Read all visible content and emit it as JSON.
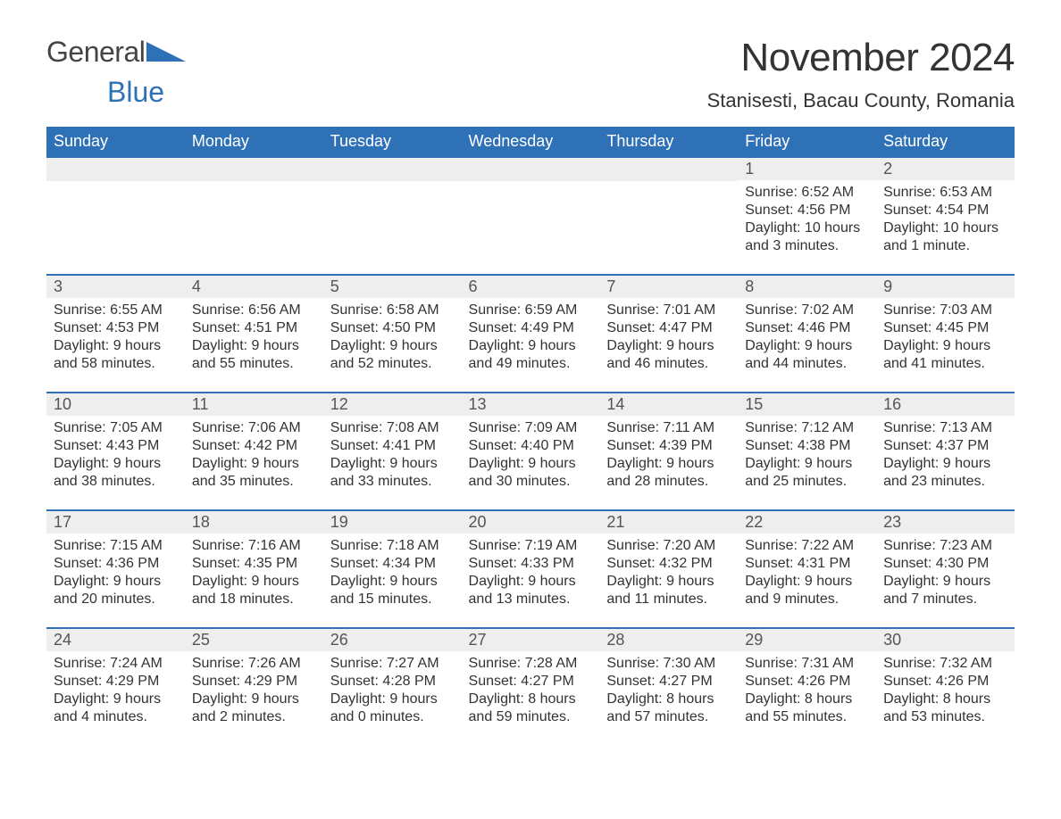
{
  "logo": {
    "word1": "General",
    "word2": "Blue"
  },
  "title": "November 2024",
  "location": "Stanisesti, Bacau County, Romania",
  "colors": {
    "header_bg": "#2f71b7",
    "header_fg": "#ffffff",
    "row_border": "#2f71b7",
    "daynum_bg": "#eeeeee",
    "text": "#333333"
  },
  "weekdays": [
    "Sunday",
    "Monday",
    "Tuesday",
    "Wednesday",
    "Thursday",
    "Friday",
    "Saturday"
  ],
  "weeks": [
    [
      null,
      null,
      null,
      null,
      null,
      {
        "n": "1",
        "sr": "Sunrise: 6:52 AM",
        "ss": "Sunset: 4:56 PM",
        "d1": "Daylight: 10 hours",
        "d2": "and 3 minutes."
      },
      {
        "n": "2",
        "sr": "Sunrise: 6:53 AM",
        "ss": "Sunset: 4:54 PM",
        "d1": "Daylight: 10 hours",
        "d2": "and 1 minute."
      }
    ],
    [
      {
        "n": "3",
        "sr": "Sunrise: 6:55 AM",
        "ss": "Sunset: 4:53 PM",
        "d1": "Daylight: 9 hours",
        "d2": "and 58 minutes."
      },
      {
        "n": "4",
        "sr": "Sunrise: 6:56 AM",
        "ss": "Sunset: 4:51 PM",
        "d1": "Daylight: 9 hours",
        "d2": "and 55 minutes."
      },
      {
        "n": "5",
        "sr": "Sunrise: 6:58 AM",
        "ss": "Sunset: 4:50 PM",
        "d1": "Daylight: 9 hours",
        "d2": "and 52 minutes."
      },
      {
        "n": "6",
        "sr": "Sunrise: 6:59 AM",
        "ss": "Sunset: 4:49 PM",
        "d1": "Daylight: 9 hours",
        "d2": "and 49 minutes."
      },
      {
        "n": "7",
        "sr": "Sunrise: 7:01 AM",
        "ss": "Sunset: 4:47 PM",
        "d1": "Daylight: 9 hours",
        "d2": "and 46 minutes."
      },
      {
        "n": "8",
        "sr": "Sunrise: 7:02 AM",
        "ss": "Sunset: 4:46 PM",
        "d1": "Daylight: 9 hours",
        "d2": "and 44 minutes."
      },
      {
        "n": "9",
        "sr": "Sunrise: 7:03 AM",
        "ss": "Sunset: 4:45 PM",
        "d1": "Daylight: 9 hours",
        "d2": "and 41 minutes."
      }
    ],
    [
      {
        "n": "10",
        "sr": "Sunrise: 7:05 AM",
        "ss": "Sunset: 4:43 PM",
        "d1": "Daylight: 9 hours",
        "d2": "and 38 minutes."
      },
      {
        "n": "11",
        "sr": "Sunrise: 7:06 AM",
        "ss": "Sunset: 4:42 PM",
        "d1": "Daylight: 9 hours",
        "d2": "and 35 minutes."
      },
      {
        "n": "12",
        "sr": "Sunrise: 7:08 AM",
        "ss": "Sunset: 4:41 PM",
        "d1": "Daylight: 9 hours",
        "d2": "and 33 minutes."
      },
      {
        "n": "13",
        "sr": "Sunrise: 7:09 AM",
        "ss": "Sunset: 4:40 PM",
        "d1": "Daylight: 9 hours",
        "d2": "and 30 minutes."
      },
      {
        "n": "14",
        "sr": "Sunrise: 7:11 AM",
        "ss": "Sunset: 4:39 PM",
        "d1": "Daylight: 9 hours",
        "d2": "and 28 minutes."
      },
      {
        "n": "15",
        "sr": "Sunrise: 7:12 AM",
        "ss": "Sunset: 4:38 PM",
        "d1": "Daylight: 9 hours",
        "d2": "and 25 minutes."
      },
      {
        "n": "16",
        "sr": "Sunrise: 7:13 AM",
        "ss": "Sunset: 4:37 PM",
        "d1": "Daylight: 9 hours",
        "d2": "and 23 minutes."
      }
    ],
    [
      {
        "n": "17",
        "sr": "Sunrise: 7:15 AM",
        "ss": "Sunset: 4:36 PM",
        "d1": "Daylight: 9 hours",
        "d2": "and 20 minutes."
      },
      {
        "n": "18",
        "sr": "Sunrise: 7:16 AM",
        "ss": "Sunset: 4:35 PM",
        "d1": "Daylight: 9 hours",
        "d2": "and 18 minutes."
      },
      {
        "n": "19",
        "sr": "Sunrise: 7:18 AM",
        "ss": "Sunset: 4:34 PM",
        "d1": "Daylight: 9 hours",
        "d2": "and 15 minutes."
      },
      {
        "n": "20",
        "sr": "Sunrise: 7:19 AM",
        "ss": "Sunset: 4:33 PM",
        "d1": "Daylight: 9 hours",
        "d2": "and 13 minutes."
      },
      {
        "n": "21",
        "sr": "Sunrise: 7:20 AM",
        "ss": "Sunset: 4:32 PM",
        "d1": "Daylight: 9 hours",
        "d2": "and 11 minutes."
      },
      {
        "n": "22",
        "sr": "Sunrise: 7:22 AM",
        "ss": "Sunset: 4:31 PM",
        "d1": "Daylight: 9 hours",
        "d2": "and 9 minutes."
      },
      {
        "n": "23",
        "sr": "Sunrise: 7:23 AM",
        "ss": "Sunset: 4:30 PM",
        "d1": "Daylight: 9 hours",
        "d2": "and 7 minutes."
      }
    ],
    [
      {
        "n": "24",
        "sr": "Sunrise: 7:24 AM",
        "ss": "Sunset: 4:29 PM",
        "d1": "Daylight: 9 hours",
        "d2": "and 4 minutes."
      },
      {
        "n": "25",
        "sr": "Sunrise: 7:26 AM",
        "ss": "Sunset: 4:29 PM",
        "d1": "Daylight: 9 hours",
        "d2": "and 2 minutes."
      },
      {
        "n": "26",
        "sr": "Sunrise: 7:27 AM",
        "ss": "Sunset: 4:28 PM",
        "d1": "Daylight: 9 hours",
        "d2": "and 0 minutes."
      },
      {
        "n": "27",
        "sr": "Sunrise: 7:28 AM",
        "ss": "Sunset: 4:27 PM",
        "d1": "Daylight: 8 hours",
        "d2": "and 59 minutes."
      },
      {
        "n": "28",
        "sr": "Sunrise: 7:30 AM",
        "ss": "Sunset: 4:27 PM",
        "d1": "Daylight: 8 hours",
        "d2": "and 57 minutes."
      },
      {
        "n": "29",
        "sr": "Sunrise: 7:31 AM",
        "ss": "Sunset: 4:26 PM",
        "d1": "Daylight: 8 hours",
        "d2": "and 55 minutes."
      },
      {
        "n": "30",
        "sr": "Sunrise: 7:32 AM",
        "ss": "Sunset: 4:26 PM",
        "d1": "Daylight: 8 hours",
        "d2": "and 53 minutes."
      }
    ]
  ]
}
